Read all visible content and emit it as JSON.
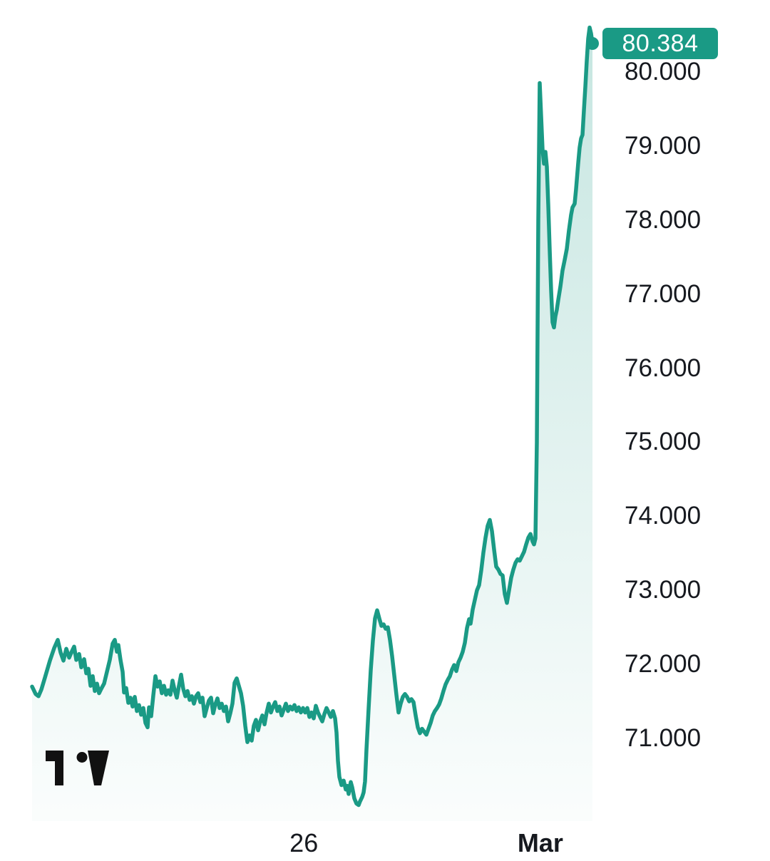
{
  "chart_data": {
    "type": "area",
    "title": "",
    "grid": false,
    "legend": false,
    "ylim": [
      70.0,
      80.7
    ],
    "last_price": 80.384,
    "last_price_label": "80.384",
    "y_ticks": [
      "80.000",
      "79.000",
      "78.000",
      "77.000",
      "76.000",
      "75.000",
      "74.000",
      "73.000",
      "72.000",
      "71.000"
    ],
    "x_ticks": [
      {
        "label": "26",
        "pct": 48.5,
        "bold": false
      },
      {
        "label": "Mar",
        "pct": 90.7,
        "bold": true
      }
    ],
    "colors": {
      "line": "#1a9a85",
      "fill_top": "rgba(26,154,133,0.25)",
      "fill_bottom": "rgba(26,154,133,0.02)",
      "badge_bg": "#1a9a85",
      "badge_text": "#ffffff",
      "axis_text": "#16191f",
      "logo": "#111111"
    },
    "series": [
      {
        "name": "price",
        "points": [
          [
            0.0,
            71.7
          ],
          [
            0.64,
            71.6
          ],
          [
            1.15,
            71.57
          ],
          [
            1.65,
            71.66
          ],
          [
            2.29,
            71.82
          ],
          [
            3.18,
            72.05
          ],
          [
            3.94,
            72.22
          ],
          [
            4.58,
            72.33
          ],
          [
            5.09,
            72.16
          ],
          [
            5.6,
            72.05
          ],
          [
            6.11,
            72.21
          ],
          [
            6.62,
            72.09
          ],
          [
            7.12,
            72.18
          ],
          [
            7.51,
            72.24
          ],
          [
            7.89,
            72.06
          ],
          [
            8.4,
            72.14
          ],
          [
            8.78,
            71.96
          ],
          [
            9.29,
            72.07
          ],
          [
            9.67,
            71.88
          ],
          [
            10.05,
            71.94
          ],
          [
            10.43,
            71.71
          ],
          [
            10.81,
            71.84
          ],
          [
            11.2,
            71.64
          ],
          [
            11.58,
            71.74
          ],
          [
            11.96,
            71.61
          ],
          [
            12.34,
            71.67
          ],
          [
            12.85,
            71.74
          ],
          [
            13.36,
            71.9
          ],
          [
            13.87,
            72.06
          ],
          [
            14.38,
            72.28
          ],
          [
            14.76,
            72.33
          ],
          [
            15.14,
            72.17
          ],
          [
            15.39,
            72.26
          ],
          [
            15.78,
            72.06
          ],
          [
            16.16,
            71.9
          ],
          [
            16.41,
            71.62
          ],
          [
            16.79,
            71.68
          ],
          [
            17.18,
            71.48
          ],
          [
            17.56,
            71.55
          ],
          [
            17.94,
            71.43
          ],
          [
            18.32,
            71.56
          ],
          [
            18.7,
            71.37
          ],
          [
            19.08,
            71.45
          ],
          [
            19.47,
            71.32
          ],
          [
            19.85,
            71.41
          ],
          [
            20.23,
            71.21
          ],
          [
            20.61,
            71.15
          ],
          [
            20.87,
            71.42
          ],
          [
            21.25,
            71.3
          ],
          [
            21.63,
            71.58
          ],
          [
            22.01,
            71.84
          ],
          [
            22.39,
            71.7
          ],
          [
            22.77,
            71.77
          ],
          [
            23.16,
            71.61
          ],
          [
            23.54,
            71.71
          ],
          [
            23.92,
            71.59
          ],
          [
            24.3,
            71.65
          ],
          [
            24.68,
            71.59
          ],
          [
            25.06,
            71.78
          ],
          [
            25.45,
            71.65
          ],
          [
            25.83,
            71.55
          ],
          [
            26.21,
            71.71
          ],
          [
            26.59,
            71.86
          ],
          [
            26.97,
            71.67
          ],
          [
            27.35,
            71.57
          ],
          [
            27.74,
            71.64
          ],
          [
            28.12,
            71.52
          ],
          [
            28.5,
            71.57
          ],
          [
            28.88,
            71.47
          ],
          [
            29.26,
            71.57
          ],
          [
            29.64,
            71.61
          ],
          [
            30.03,
            71.49
          ],
          [
            30.41,
            71.55
          ],
          [
            30.79,
            71.3
          ],
          [
            31.17,
            71.41
          ],
          [
            31.55,
            71.51
          ],
          [
            31.93,
            71.55
          ],
          [
            32.32,
            71.34
          ],
          [
            32.7,
            71.46
          ],
          [
            33.08,
            71.54
          ],
          [
            33.46,
            71.41
          ],
          [
            33.84,
            71.47
          ],
          [
            34.22,
            71.37
          ],
          [
            34.61,
            71.43
          ],
          [
            34.99,
            71.23
          ],
          [
            35.37,
            71.34
          ],
          [
            35.75,
            71.47
          ],
          [
            36.13,
            71.75
          ],
          [
            36.51,
            71.81
          ],
          [
            36.9,
            71.71
          ],
          [
            37.28,
            71.61
          ],
          [
            37.66,
            71.44
          ],
          [
            38.04,
            71.17
          ],
          [
            38.42,
            70.95
          ],
          [
            38.8,
            71.04
          ],
          [
            39.19,
            70.97
          ],
          [
            39.57,
            71.17
          ],
          [
            39.95,
            71.25
          ],
          [
            40.33,
            71.11
          ],
          [
            40.71,
            71.23
          ],
          [
            41.09,
            71.31
          ],
          [
            41.48,
            71.19
          ],
          [
            41.86,
            71.35
          ],
          [
            42.24,
            71.47
          ],
          [
            42.62,
            71.35
          ],
          [
            43.0,
            71.43
          ],
          [
            43.38,
            71.49
          ],
          [
            43.77,
            71.37
          ],
          [
            44.15,
            71.43
          ],
          [
            44.53,
            71.31
          ],
          [
            44.91,
            71.39
          ],
          [
            45.29,
            71.47
          ],
          [
            45.67,
            71.37
          ],
          [
            46.06,
            71.43
          ],
          [
            46.44,
            71.39
          ],
          [
            46.82,
            71.45
          ],
          [
            47.2,
            71.37
          ],
          [
            47.58,
            71.42
          ],
          [
            47.96,
            71.35
          ],
          [
            48.35,
            71.41
          ],
          [
            48.73,
            71.35
          ],
          [
            49.11,
            71.41
          ],
          [
            49.49,
            71.29
          ],
          [
            49.87,
            71.35
          ],
          [
            50.25,
            71.27
          ],
          [
            50.64,
            71.44
          ],
          [
            51.02,
            71.35
          ],
          [
            51.4,
            71.29
          ],
          [
            51.78,
            71.23
          ],
          [
            52.16,
            71.33
          ],
          [
            52.54,
            71.41
          ],
          [
            52.93,
            71.35
          ],
          [
            53.31,
            71.29
          ],
          [
            53.69,
            71.37
          ],
          [
            54.07,
            71.27
          ],
          [
            54.33,
            71.08
          ],
          [
            54.58,
            70.7
          ],
          [
            54.83,
            70.48
          ],
          [
            55.22,
            70.37
          ],
          [
            55.6,
            70.43
          ],
          [
            55.98,
            70.31
          ],
          [
            56.23,
            70.36
          ],
          [
            56.49,
            70.25
          ],
          [
            56.87,
            70.41
          ],
          [
            57.12,
            70.34
          ],
          [
            57.51,
            70.19
          ],
          [
            57.89,
            70.12
          ],
          [
            58.27,
            70.1
          ],
          [
            58.52,
            70.15
          ],
          [
            58.91,
            70.21
          ],
          [
            59.16,
            70.27
          ],
          [
            59.41,
            70.42
          ],
          [
            59.67,
            70.85
          ],
          [
            60.05,
            71.4
          ],
          [
            60.43,
            71.92
          ],
          [
            60.81,
            72.32
          ],
          [
            61.2,
            72.62
          ],
          [
            61.58,
            72.73
          ],
          [
            61.96,
            72.62
          ],
          [
            62.34,
            72.52
          ],
          [
            62.72,
            72.54
          ],
          [
            63.1,
            72.48
          ],
          [
            63.49,
            72.5
          ],
          [
            63.87,
            72.33
          ],
          [
            64.25,
            72.11
          ],
          [
            64.63,
            71.85
          ],
          [
            65.01,
            71.59
          ],
          [
            65.39,
            71.35
          ],
          [
            65.78,
            71.47
          ],
          [
            66.16,
            71.56
          ],
          [
            66.54,
            71.6
          ],
          [
            66.92,
            71.56
          ],
          [
            67.3,
            71.5
          ],
          [
            67.68,
            71.53
          ],
          [
            68.07,
            71.49
          ],
          [
            68.45,
            71.31
          ],
          [
            68.83,
            71.15
          ],
          [
            69.21,
            71.07
          ],
          [
            69.59,
            71.13
          ],
          [
            69.97,
            71.09
          ],
          [
            70.36,
            71.05
          ],
          [
            70.74,
            71.13
          ],
          [
            71.12,
            71.21
          ],
          [
            71.5,
            71.31
          ],
          [
            71.88,
            71.37
          ],
          [
            72.26,
            71.41
          ],
          [
            72.65,
            71.46
          ],
          [
            73.03,
            71.54
          ],
          [
            73.41,
            71.64
          ],
          [
            73.79,
            71.73
          ],
          [
            74.17,
            71.79
          ],
          [
            74.55,
            71.84
          ],
          [
            74.94,
            71.93
          ],
          [
            75.32,
            71.99
          ],
          [
            75.7,
            71.91
          ],
          [
            76.08,
            72.03
          ],
          [
            76.46,
            72.09
          ],
          [
            76.84,
            72.17
          ],
          [
            77.23,
            72.29
          ],
          [
            77.61,
            72.49
          ],
          [
            77.99,
            72.61
          ],
          [
            78.24,
            72.55
          ],
          [
            78.63,
            72.74
          ],
          [
            79.01,
            72.87
          ],
          [
            79.39,
            73.0
          ],
          [
            79.77,
            73.07
          ],
          [
            80.15,
            73.27
          ],
          [
            80.53,
            73.51
          ],
          [
            80.92,
            73.71
          ],
          [
            81.3,
            73.87
          ],
          [
            81.68,
            73.95
          ],
          [
            82.06,
            73.8
          ],
          [
            82.44,
            73.55
          ],
          [
            82.82,
            73.32
          ],
          [
            83.21,
            73.28
          ],
          [
            83.59,
            73.22
          ],
          [
            83.97,
            73.2
          ],
          [
            84.35,
            72.95
          ],
          [
            84.73,
            72.83
          ],
          [
            85.11,
            73.0
          ],
          [
            85.5,
            73.17
          ],
          [
            85.88,
            73.28
          ],
          [
            86.26,
            73.37
          ],
          [
            86.64,
            73.42
          ],
          [
            87.02,
            73.4
          ],
          [
            87.4,
            73.46
          ],
          [
            87.79,
            73.52
          ],
          [
            88.17,
            73.62
          ],
          [
            88.55,
            73.71
          ],
          [
            88.93,
            73.76
          ],
          [
            89.31,
            73.66
          ],
          [
            89.57,
            73.62
          ],
          [
            89.82,
            73.7
          ],
          [
            90.08,
            75.0
          ],
          [
            90.33,
            78.0
          ],
          [
            90.59,
            79.85
          ],
          [
            90.84,
            79.4
          ],
          [
            91.09,
            78.95
          ],
          [
            91.35,
            78.76
          ],
          [
            91.6,
            78.92
          ],
          [
            91.86,
            78.72
          ],
          [
            92.11,
            78.2
          ],
          [
            92.37,
            77.6
          ],
          [
            92.62,
            77.05
          ],
          [
            92.88,
            76.62
          ],
          [
            93.13,
            76.55
          ],
          [
            93.38,
            76.7
          ],
          [
            93.64,
            76.79
          ],
          [
            93.89,
            76.92
          ],
          [
            94.27,
            77.1
          ],
          [
            94.66,
            77.32
          ],
          [
            95.04,
            77.46
          ],
          [
            95.42,
            77.61
          ],
          [
            95.8,
            77.86
          ],
          [
            96.18,
            78.07
          ],
          [
            96.44,
            78.17
          ],
          [
            96.82,
            78.22
          ],
          [
            97.07,
            78.42
          ],
          [
            97.46,
            78.77
          ],
          [
            97.71,
            78.98
          ],
          [
            97.96,
            79.1
          ],
          [
            98.22,
            79.15
          ],
          [
            98.47,
            79.48
          ],
          [
            98.73,
            79.8
          ],
          [
            98.98,
            80.15
          ],
          [
            99.24,
            80.45
          ],
          [
            99.49,
            80.6
          ],
          [
            99.75,
            80.52
          ],
          [
            100.0,
            80.384
          ]
        ]
      }
    ]
  },
  "watermark": {
    "icon": "tradingview-logo"
  }
}
